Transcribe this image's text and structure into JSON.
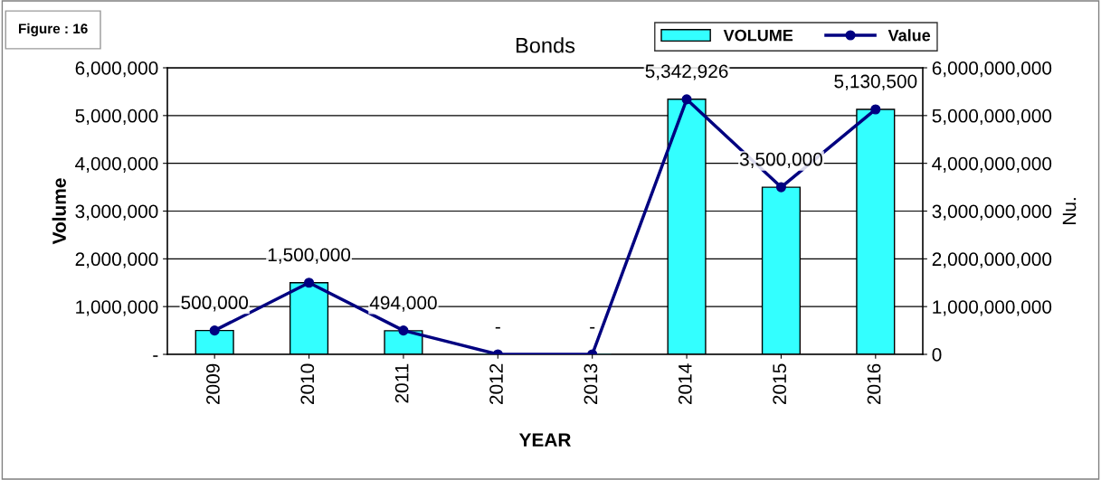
{
  "chart_data": {
    "type": "bar",
    "title": "Bonds",
    "xlabel": "YEAR",
    "ylabel": "Volume",
    "y2label": "Nu.",
    "annotations": [
      "Figure : 16"
    ],
    "categories": [
      "2009",
      "2010",
      "2011",
      "2012",
      "2013",
      "2014",
      "2015",
      "2016"
    ],
    "series": [
      {
        "name": "VOLUME",
        "color": "#33ffff",
        "values": [
          500000,
          1500000,
          494000,
          0,
          0,
          5342926,
          3500000,
          5130500
        ],
        "value_labels": [
          "500,000",
          "1,500,000",
          "494,000",
          "-",
          "-",
          "5,342,926",
          "3,500,000",
          "5,130,500"
        ]
      },
      {
        "name": "Value",
        "type": "line",
        "axis": "y2",
        "color": "#000080",
        "marker": "circle",
        "values": [
          500000000,
          1500000000,
          500000000,
          0,
          0,
          5340000000,
          3500000000,
          5130000000
        ]
      }
    ],
    "ylim": [
      0,
      6000000
    ],
    "yticks": [
      {
        "value": 0,
        "label": "-"
      },
      {
        "value": 1000000,
        "label": "1,000,000"
      },
      {
        "value": 2000000,
        "label": "2,000,000"
      },
      {
        "value": 3000000,
        "label": "3,000,000"
      },
      {
        "value": 4000000,
        "label": "4,000,000"
      },
      {
        "value": 5000000,
        "label": "5,000,000"
      },
      {
        "value": 6000000,
        "label": "6,000,000"
      }
    ],
    "y2lim": [
      0,
      6000000000
    ],
    "y2ticks": [
      0,
      {
        "value": 1000000000,
        "label": "1,000,000,000"
      },
      {
        "value": 2000000000,
        "label": "2,000,000,000"
      },
      {
        "value": 3000000000,
        "label": "3,000,000,000"
      },
      {
        "value": 4000000000,
        "label": "4,000,000,000"
      },
      {
        "value": 5000000000,
        "label": "5,000,000,000"
      },
      {
        "value": 6000000000,
        "label": "6,000,000,000"
      }
    ],
    "grid": "y",
    "legend": "top right"
  }
}
